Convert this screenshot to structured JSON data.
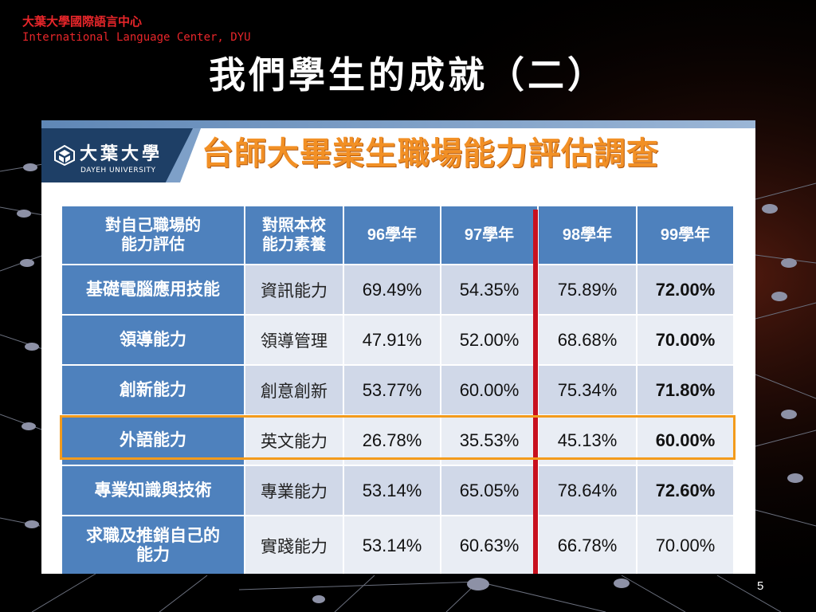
{
  "header": {
    "org_zh": "大葉大學國際語言中心",
    "org_en": "International Language Center, DYU"
  },
  "slide_title": "我們學生的成就（二）",
  "panel": {
    "logo": {
      "name_zh": "大葉大學",
      "name_en": "DAYEH UNIVERSITY",
      "icon": "dayeh-logo-icon"
    },
    "survey_title": "台師大畢業生職場能力評估調查",
    "table": {
      "headers": [
        "對自己職場的\n能力評估",
        "對照本校\n能力素養",
        "96學年",
        "97學年",
        "98學年",
        "99學年"
      ],
      "rows": [
        {
          "ability": "基礎電腦應用技能",
          "competency": "資訊能力",
          "y96": "69.49%",
          "y97": "54.35%",
          "y98": "75.89%",
          "y99": "72.00%"
        },
        {
          "ability": "領導能力",
          "competency": "領導管理",
          "y96": "47.91%",
          "y97": "52.00%",
          "y98": "68.68%",
          "y99": "70.00%"
        },
        {
          "ability": "創新能力",
          "competency": "創意創新",
          "y96": "53.77%",
          "y97": "60.00%",
          "y98": "75.34%",
          "y99": "71.80%"
        },
        {
          "ability": "外語能力",
          "competency": "英文能力",
          "y96": "26.78%",
          "y97": "35.53%",
          "y98": "45.13%",
          "y99": "60.00%"
        },
        {
          "ability": "專業知識與技術",
          "competency": "專業能力",
          "y96": "53.14%",
          "y97": "65.05%",
          "y98": "78.64%",
          "y99": "72.60%"
        },
        {
          "ability": "求職及推銷自己的\n能力",
          "competency": "實踐能力",
          "y96": "53.14%",
          "y97": "60.63%",
          "y98": "66.78%",
          "y99": "70.00%"
        }
      ]
    },
    "highlight_color": "#f39b1c",
    "divider_color": "#c8101e"
  },
  "page_number": "5",
  "colors": {
    "header_red": "#e8262a",
    "title_orange": "#f29025",
    "table_blue": "#4e81bd",
    "background": "#000000"
  }
}
